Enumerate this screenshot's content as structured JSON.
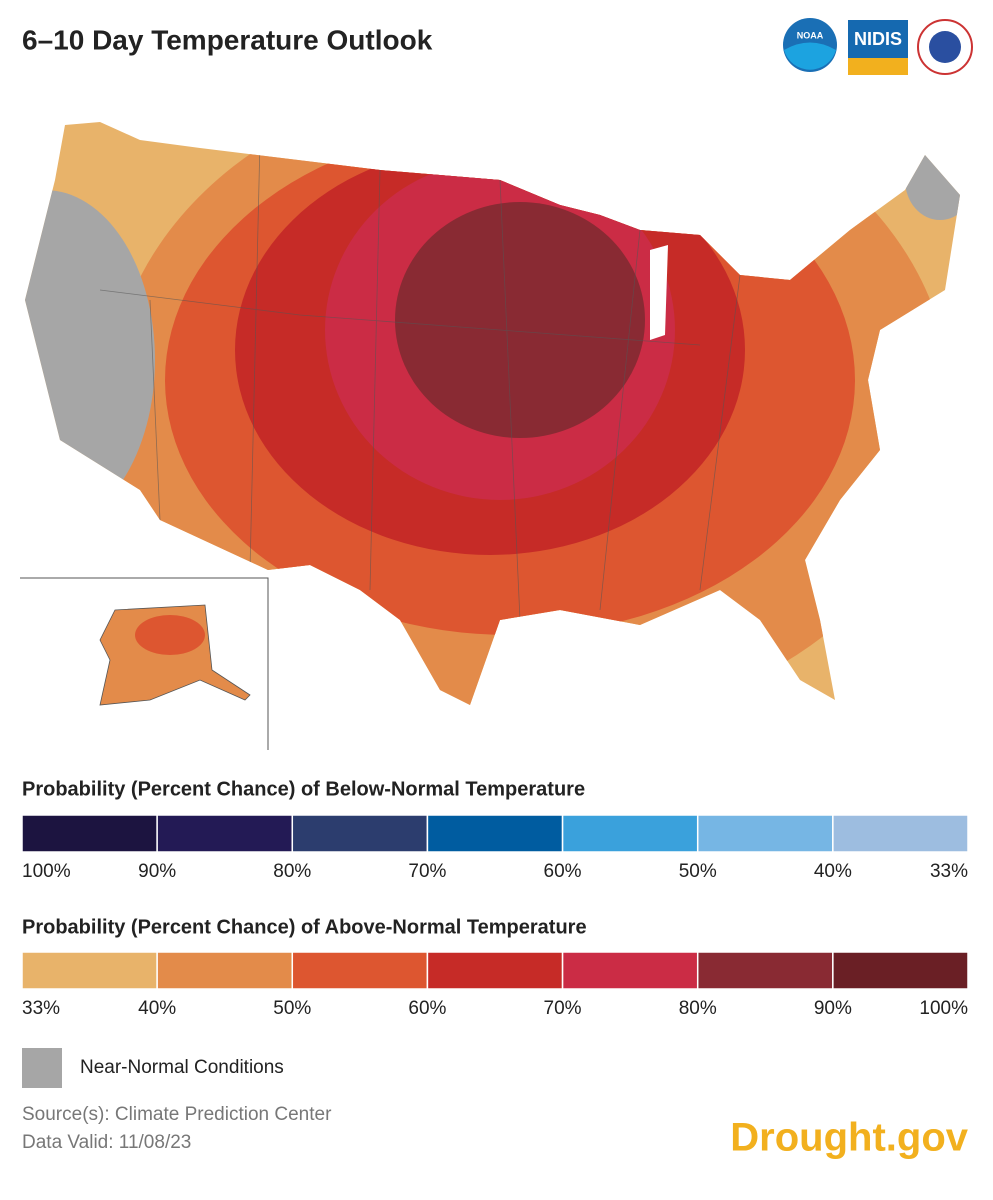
{
  "header": {
    "title": "6–10 Day Temperature Outlook",
    "logos": [
      "NOAA",
      "NIDIS"
    ]
  },
  "legend_below": {
    "title": "Probability (Percent Chance) of Below-Normal Temperature",
    "labels": [
      "100%",
      "90%",
      "80%",
      "70%",
      "60%",
      "50%",
      "40%",
      "33%"
    ],
    "colors": [
      "#1c1440",
      "#231a55",
      "#2c3d6e",
      "#005ca0",
      "#3aa1dc",
      "#76b6e4",
      "#9dbde0"
    ]
  },
  "legend_above": {
    "title": "Probability (Percent Chance) of Above-Normal Temperature",
    "labels": [
      "33%",
      "40%",
      "50%",
      "60%",
      "70%",
      "80%",
      "90%",
      "100%"
    ],
    "colors": [
      "#e8b36a",
      "#e38b4a",
      "#dd5630",
      "#c62b27",
      "#cb2c45",
      "#892a33",
      "#6a1f25"
    ]
  },
  "near_normal": {
    "label": "Near-Normal Conditions",
    "color": "#a6a6a6"
  },
  "footer": {
    "source": "Source(s): Climate Prediction Center",
    "valid": "Data Valid: 11/08/23",
    "brand": "Drought.gov"
  }
}
